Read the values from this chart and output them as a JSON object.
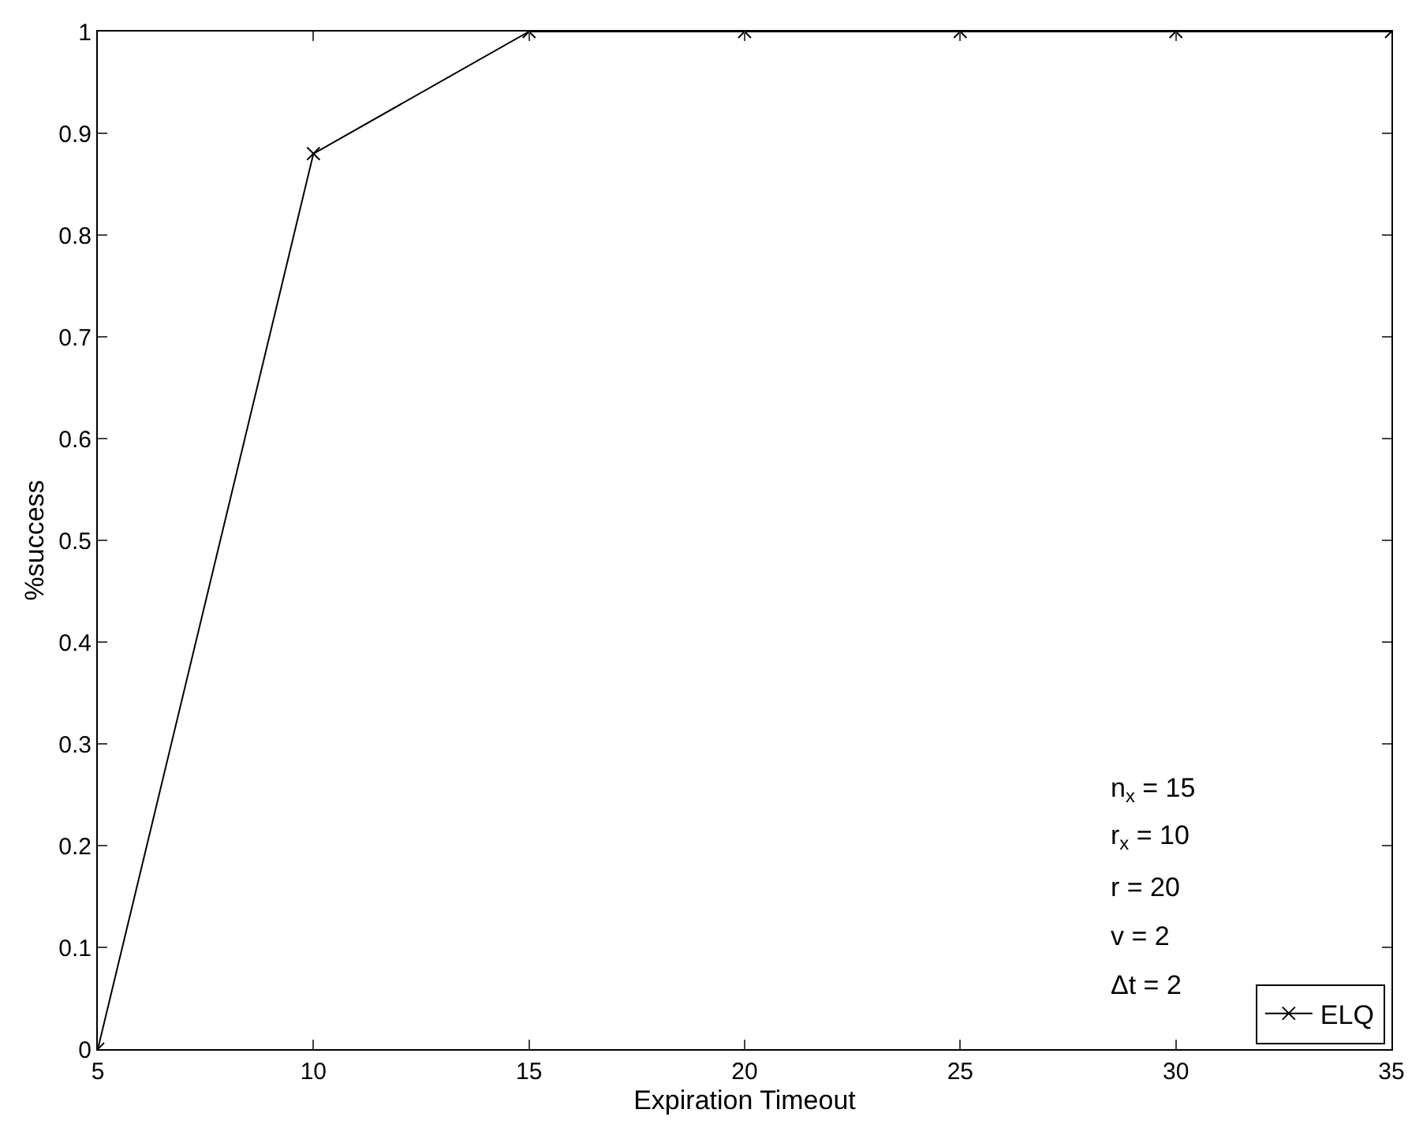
{
  "chart_data": {
    "type": "line",
    "xlabel": "Expiration Timeout",
    "ylabel": "%success",
    "x": [
      5,
      10,
      15,
      20,
      25,
      30,
      35
    ],
    "series": [
      {
        "name": "ELQ",
        "color": "#000000",
        "values": [
          0,
          0.88,
          1,
          1,
          1,
          1,
          1
        ]
      }
    ],
    "xlim": [
      5,
      35
    ],
    "xticks": [
      5,
      10,
      15,
      20,
      25,
      30,
      35
    ],
    "ylim": [
      0,
      1
    ],
    "yticks": [
      0,
      0.1,
      0.2,
      0.3,
      0.4,
      0.5,
      0.6,
      0.7,
      0.8,
      0.9,
      1
    ],
    "marker": "cross",
    "line_style": "solid",
    "legend": "bottom right",
    "annotations": [
      "n$_{x}$ = 15",
      "r$_{x}$ = 10",
      "r = 20",
      "v = 2",
      "Δt = 2"
    ]
  }
}
